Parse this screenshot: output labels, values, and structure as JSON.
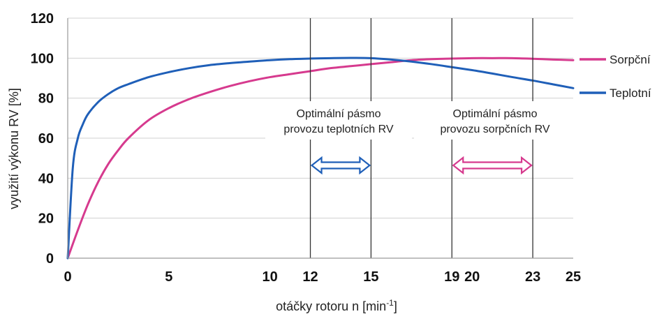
{
  "chart_data": {
    "type": "line",
    "xlabel": "otáčky rotoru n [min",
    "xlabel_sup": "-1",
    "xlabel_end": "]",
    "ylabel": "využití výkonu RV [%]",
    "xlim": [
      0,
      25
    ],
    "ylim": [
      0,
      120
    ],
    "x_ticks": [
      0,
      5,
      10,
      12,
      15,
      19,
      20,
      23,
      25
    ],
    "y_ticks": [
      0,
      20,
      40,
      60,
      80,
      100,
      120
    ],
    "grid": "horizontal",
    "legend": "right",
    "series": [
      {
        "name": "Sorpční",
        "color": "#d63a8e",
        "x": [
          0,
          0.5,
          1,
          1.5,
          2,
          2.5,
          3,
          4,
          5,
          6,
          7,
          8,
          9,
          10,
          11,
          12,
          13,
          14,
          15,
          16,
          17,
          18,
          19,
          20,
          21,
          22,
          23,
          24,
          25
        ],
        "y": [
          0,
          14,
          27,
          38,
          47,
          54,
          60,
          69,
          75,
          79.5,
          83,
          86,
          88.5,
          90.5,
          92,
          93.5,
          95,
          96,
          97,
          98,
          99,
          99.5,
          99.8,
          100,
          100,
          100,
          99.7,
          99.3,
          99
        ]
      },
      {
        "name": "Teplotní",
        "color": "#1f5fb8",
        "x": [
          0,
          0.25,
          0.5,
          0.75,
          1,
          1.5,
          2,
          2.5,
          3,
          4,
          5,
          6,
          7,
          8,
          9,
          10,
          11,
          12,
          13,
          14,
          15,
          16,
          17,
          18,
          19,
          20,
          21,
          22,
          23,
          24,
          25
        ],
        "y": [
          0,
          45,
          60,
          67,
          72,
          78,
          82,
          85,
          87,
          90.5,
          93,
          95,
          96.5,
          97.5,
          98.3,
          99,
          99.5,
          99.8,
          100,
          100.1,
          100,
          99.3,
          98.3,
          97,
          95.5,
          94,
          92.3,
          90.5,
          88.8,
          86.9,
          85
        ]
      }
    ],
    "zones": [
      {
        "label_line1": "Optimální pásmo",
        "label_line2": "provozu teplotních RV",
        "x_start": 12,
        "x_end": 15,
        "color": "#1f5fb8"
      },
      {
        "label_line1": "Optimální pásmo",
        "label_line2": "provozu sorpčních RV",
        "x_start": 19,
        "x_end": 23,
        "color": "#d63a8e"
      }
    ]
  }
}
